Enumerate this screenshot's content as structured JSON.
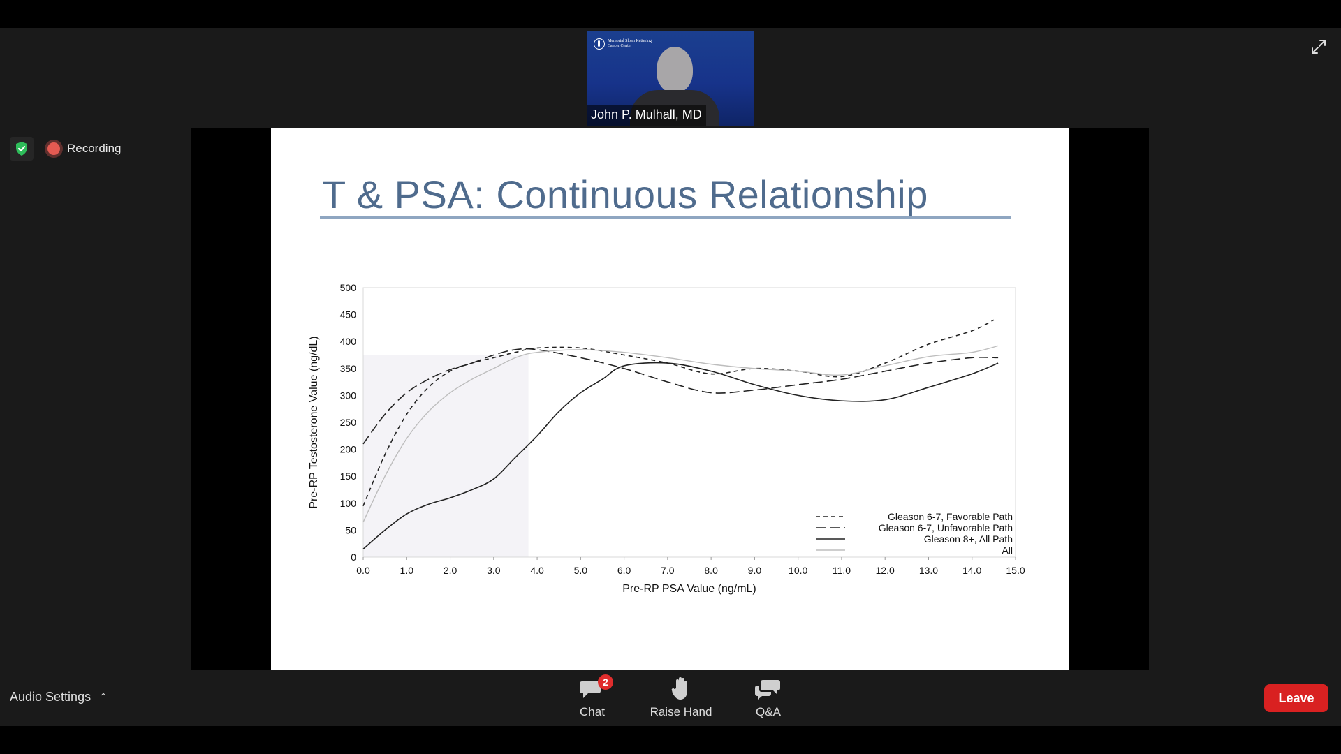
{
  "video": {
    "name": "John P. Mulhall, MD",
    "logo_text": "Memorial Sloan Kettering Cancer Center"
  },
  "status": {
    "recording_label": "Recording"
  },
  "slide": {
    "title": "T & PSA: Continuous Relationship"
  },
  "chart_data": {
    "type": "line",
    "xlabel": "Pre-RP PSA Value (ng/mL)",
    "ylabel": "Pre-RP Testosterone Value (ng/dL)",
    "xlim": [
      0,
      15
    ],
    "ylim": [
      0,
      500
    ],
    "x_ticks": [
      "0.0",
      "1.0",
      "2.0",
      "3.0",
      "4.0",
      "5.0",
      "6.0",
      "7.0",
      "8.0",
      "9.0",
      "10.0",
      "11.0",
      "12.0",
      "13.0",
      "14.0",
      "15.0"
    ],
    "y_ticks": [
      "0",
      "50",
      "100",
      "150",
      "200",
      "250",
      "300",
      "350",
      "400",
      "450",
      "500"
    ],
    "shaded_region": {
      "x": [
        0,
        3.8
      ],
      "y": [
        0,
        375
      ]
    },
    "legend_position": "bottom-right",
    "series": [
      {
        "name": "Gleason 6-7, Favorable Path",
        "style": "short-dash",
        "color": "#222222",
        "x": [
          0,
          0.5,
          1,
          1.5,
          2,
          2.5,
          3,
          3.5,
          4,
          5,
          6,
          7,
          8,
          9,
          10,
          11,
          12,
          13,
          14,
          14.5
        ],
        "y": [
          95,
          190,
          265,
          315,
          345,
          360,
          370,
          380,
          388,
          388,
          375,
          360,
          340,
          350,
          345,
          335,
          360,
          395,
          420,
          440
        ]
      },
      {
        "name": "Gleason 6-7, Unfavorable Path",
        "style": "long-dash",
        "color": "#222222",
        "x": [
          0,
          0.5,
          1,
          1.5,
          2,
          2.5,
          3,
          3.5,
          4,
          5,
          6,
          7,
          8,
          9,
          10,
          11,
          12,
          13,
          14,
          14.6
        ],
        "y": [
          210,
          265,
          305,
          330,
          348,
          360,
          375,
          385,
          385,
          370,
          350,
          325,
          305,
          310,
          320,
          330,
          345,
          360,
          370,
          370
        ]
      },
      {
        "name": "Gleason 8+, All Path",
        "style": "solid",
        "color": "#222222",
        "x": [
          0,
          0.5,
          1,
          1.5,
          2,
          2.5,
          3,
          3.5,
          4,
          4.5,
          5,
          5.5,
          6,
          7,
          8,
          9,
          10,
          11,
          12,
          13,
          14,
          14.6
        ],
        "y": [
          15,
          50,
          80,
          98,
          110,
          125,
          145,
          185,
          225,
          270,
          305,
          330,
          355,
          360,
          345,
          320,
          300,
          290,
          292,
          315,
          340,
          360
        ]
      },
      {
        "name": "All",
        "style": "solid",
        "color": "#bdbdbd",
        "x": [
          0,
          0.5,
          1,
          1.5,
          2,
          2.5,
          3,
          3.5,
          4,
          5,
          6,
          7,
          8,
          9,
          10,
          11,
          12,
          13,
          14,
          14.6
        ],
        "y": [
          65,
          150,
          220,
          270,
          305,
          330,
          350,
          370,
          380,
          385,
          380,
          370,
          358,
          350,
          345,
          338,
          355,
          372,
          380,
          392
        ]
      }
    ]
  },
  "toolbar": {
    "audio_settings_label": "Audio Settings",
    "chat_label": "Chat",
    "chat_badge": "2",
    "raise_hand_label": "Raise Hand",
    "qa_label": "Q&A",
    "leave_label": "Leave"
  },
  "colors": {
    "leave": "#d92121",
    "recording": "#e45a52",
    "shield": "#2ebd5a",
    "title": "#4f6b8d"
  }
}
